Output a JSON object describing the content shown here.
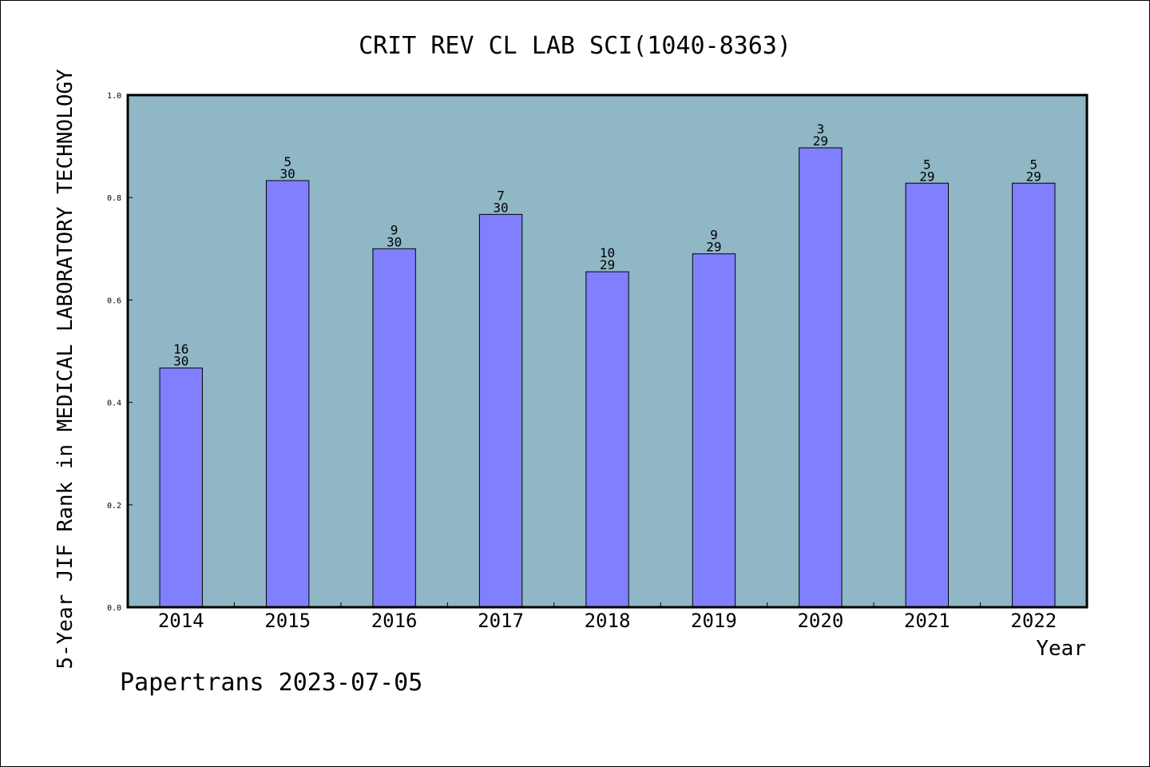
{
  "chart_data": {
    "type": "bar",
    "title": "CRIT REV CL LAB SCI(1040-8363)",
    "xlabel": "Year",
    "ylabel": "5-Year JIF Rank in MEDICAL LABORATORY TECHNOLOGY",
    "categories": [
      "2014",
      "2015",
      "2016",
      "2017",
      "2018",
      "2019",
      "2020",
      "2021",
      "2022"
    ],
    "values": [
      0.467,
      0.833,
      0.7,
      0.767,
      0.655,
      0.69,
      0.897,
      0.828,
      0.828
    ],
    "rank_labels": [
      {
        "rank": "16",
        "total": "30"
      },
      {
        "rank": "5",
        "total": "30"
      },
      {
        "rank": "9",
        "total": "30"
      },
      {
        "rank": "7",
        "total": "30"
      },
      {
        "rank": "10",
        "total": "29"
      },
      {
        "rank": "9",
        "total": "29"
      },
      {
        "rank": "3",
        "total": "29"
      },
      {
        "rank": "5",
        "total": "29"
      },
      {
        "rank": "5",
        "total": "29"
      }
    ],
    "ylim": [
      0,
      1.0
    ],
    "yticks": [
      "0.0",
      "0.2",
      "0.4",
      "0.6",
      "0.8",
      "1.0"
    ],
    "grid": false,
    "colors": {
      "plot_background": "#8fb7c6",
      "bar_fill": "#8080ff",
      "bar_stroke": "#000000"
    }
  },
  "footer": "Papertrans 2023-07-05"
}
